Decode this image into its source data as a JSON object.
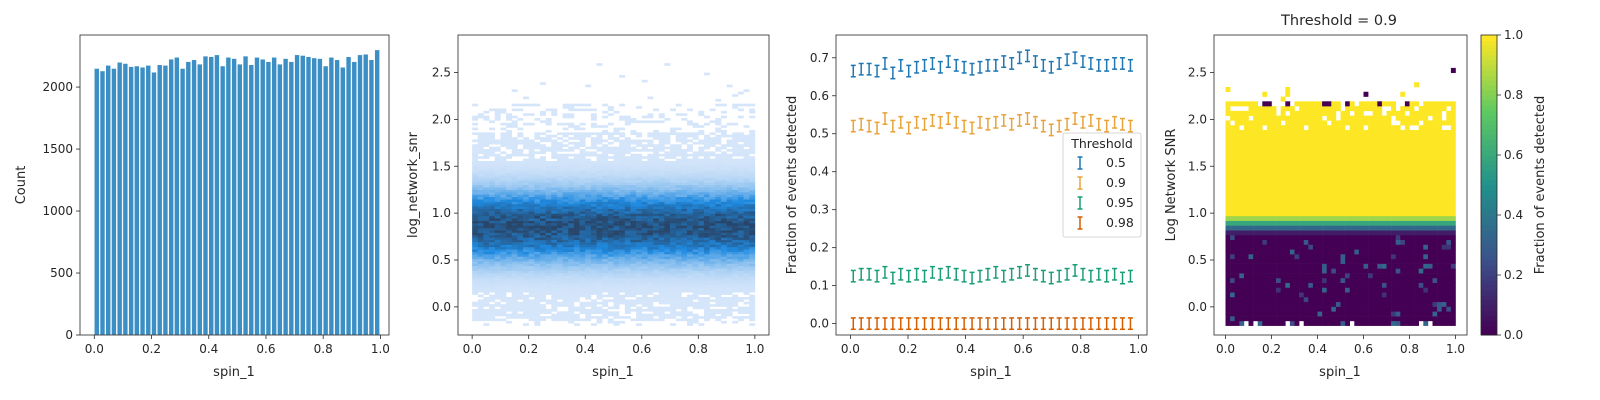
{
  "chart_data": [
    {
      "type": "bar",
      "xlabel": "spin_1",
      "ylabel": "Count",
      "xlim": [
        -0.05,
        1.03
      ],
      "ylim": [
        0,
        2420
      ],
      "xticks": [
        "0.0",
        "0.2",
        "0.4",
        "0.6",
        "0.8",
        "1.0"
      ],
      "yticks": [
        "0",
        "500",
        "1000",
        "1500",
        "2000"
      ],
      "bin_start": 0.0,
      "bin_width": 0.02,
      "color": "#3b8fc4",
      "values": [
        2150,
        2130,
        2175,
        2150,
        2200,
        2190,
        2165,
        2170,
        2160,
        2175,
        2120,
        2180,
        2175,
        2225,
        2240,
        2150,
        2205,
        2220,
        2185,
        2250,
        2245,
        2260,
        2170,
        2240,
        2230,
        2185,
        2250,
        2180,
        2240,
        2225,
        2205,
        2240,
        2185,
        2230,
        2205,
        2260,
        2255,
        2245,
        2235,
        2230,
        2170,
        2240,
        2220,
        2160,
        2245,
        2205,
        2260,
        2265,
        2220,
        2300
      ]
    },
    {
      "type": "heatmap",
      "xlabel": "spin_1",
      "ylabel": "log_network_snr",
      "xlim": [
        -0.05,
        1.05
      ],
      "ylim": [
        -0.3,
        2.9
      ],
      "xticks": [
        "0.0",
        "0.2",
        "0.4",
        "0.6",
        "0.8",
        "1.0"
      ],
      "yticks": [
        "0.0",
        "0.5",
        "1.0",
        "1.5",
        "2.0",
        "2.5"
      ],
      "colormap": [
        "#d6e6fa",
        "#1f8ae0",
        "#28466a"
      ],
      "density_center": 0.85,
      "density_range": [
        -0.2,
        2.6
      ]
    },
    {
      "type": "scatter",
      "xlabel": "spin_1",
      "ylabel": "Fraction of events detected",
      "xlim": [
        -0.05,
        1.03
      ],
      "ylim": [
        -0.03,
        0.76
      ],
      "xticks": [
        "0.0",
        "0.2",
        "0.4",
        "0.6",
        "0.8",
        "1.0"
      ],
      "yticks": [
        "0.0",
        "0.1",
        "0.2",
        "0.3",
        "0.4",
        "0.5",
        "0.6",
        "0.7"
      ],
      "x_start": 0.01,
      "x_step": 0.0275,
      "error": 0.015,
      "legend_title": "Threshold",
      "legend_position": "center-right",
      "series": [
        {
          "name": "0.5",
          "color": "#1f77b4",
          "values": [
            0.665,
            0.67,
            0.67,
            0.665,
            0.685,
            0.66,
            0.68,
            0.665,
            0.675,
            0.68,
            0.685,
            0.675,
            0.69,
            0.68,
            0.675,
            0.67,
            0.675,
            0.68,
            0.68,
            0.69,
            0.685,
            0.7,
            0.705,
            0.69,
            0.68,
            0.675,
            0.685,
            0.695,
            0.7,
            0.69,
            0.685,
            0.68,
            0.68,
            0.685,
            0.685,
            0.68
          ]
        },
        {
          "name": "0.9",
          "color": "#e8a33a",
          "values": [
            0.52,
            0.525,
            0.52,
            0.515,
            0.54,
            0.52,
            0.53,
            0.515,
            0.53,
            0.525,
            0.535,
            0.53,
            0.54,
            0.53,
            0.52,
            0.515,
            0.53,
            0.525,
            0.53,
            0.535,
            0.525,
            0.535,
            0.54,
            0.53,
            0.52,
            0.51,
            0.52,
            0.525,
            0.54,
            0.53,
            0.535,
            0.525,
            0.52,
            0.53,
            0.525,
            0.52
          ]
        },
        {
          "name": "0.95",
          "color": "#1a9e77",
          "values": [
            0.125,
            0.13,
            0.13,
            0.125,
            0.135,
            0.12,
            0.13,
            0.125,
            0.13,
            0.125,
            0.135,
            0.13,
            0.135,
            0.13,
            0.125,
            0.12,
            0.125,
            0.13,
            0.135,
            0.125,
            0.13,
            0.135,
            0.14,
            0.13,
            0.125,
            0.12,
            0.125,
            0.13,
            0.14,
            0.13,
            0.125,
            0.13,
            0.125,
            0.13,
            0.12,
            0.125
          ]
        },
        {
          "name": "0.98",
          "color": "#d55e00",
          "values": [
            0.0,
            0.0,
            0.0,
            0.0,
            0.0,
            0.0,
            0.0,
            0.0,
            0.0,
            0.0,
            0.0,
            0.0,
            0.0,
            0.0,
            0.0,
            0.0,
            0.0,
            0.0,
            0.0,
            0.0,
            0.0,
            0.0,
            0.0,
            0.0,
            0.0,
            0.0,
            0.0,
            0.0,
            0.0,
            0.0,
            0.0,
            0.0,
            0.0,
            0.0,
            0.0,
            0.0
          ]
        }
      ]
    },
    {
      "type": "heatmap",
      "title": "Threshold = 0.9",
      "xlabel": "spin_1",
      "ylabel": "Log Network SNR",
      "xlim": [
        -0.05,
        1.05
      ],
      "ylim": [
        -0.3,
        2.9
      ],
      "xticks": [
        "0.0",
        "0.2",
        "0.4",
        "0.6",
        "0.8",
        "1.0"
      ],
      "yticks": [
        "0.0",
        "0.5",
        "1.0",
        "1.5",
        "2.0",
        "2.5"
      ],
      "colorbar_label": "Fraction of events detected",
      "colorbar_ticks": [
        "0.0",
        "0.2",
        "0.4",
        "0.6",
        "0.8",
        "1.0"
      ],
      "colormap": [
        "#440154",
        "#3b528b",
        "#21918c",
        "#5ec962",
        "#fde725"
      ],
      "transition": {
        "low": 0.75,
        "high": 0.95
      }
    }
  ]
}
